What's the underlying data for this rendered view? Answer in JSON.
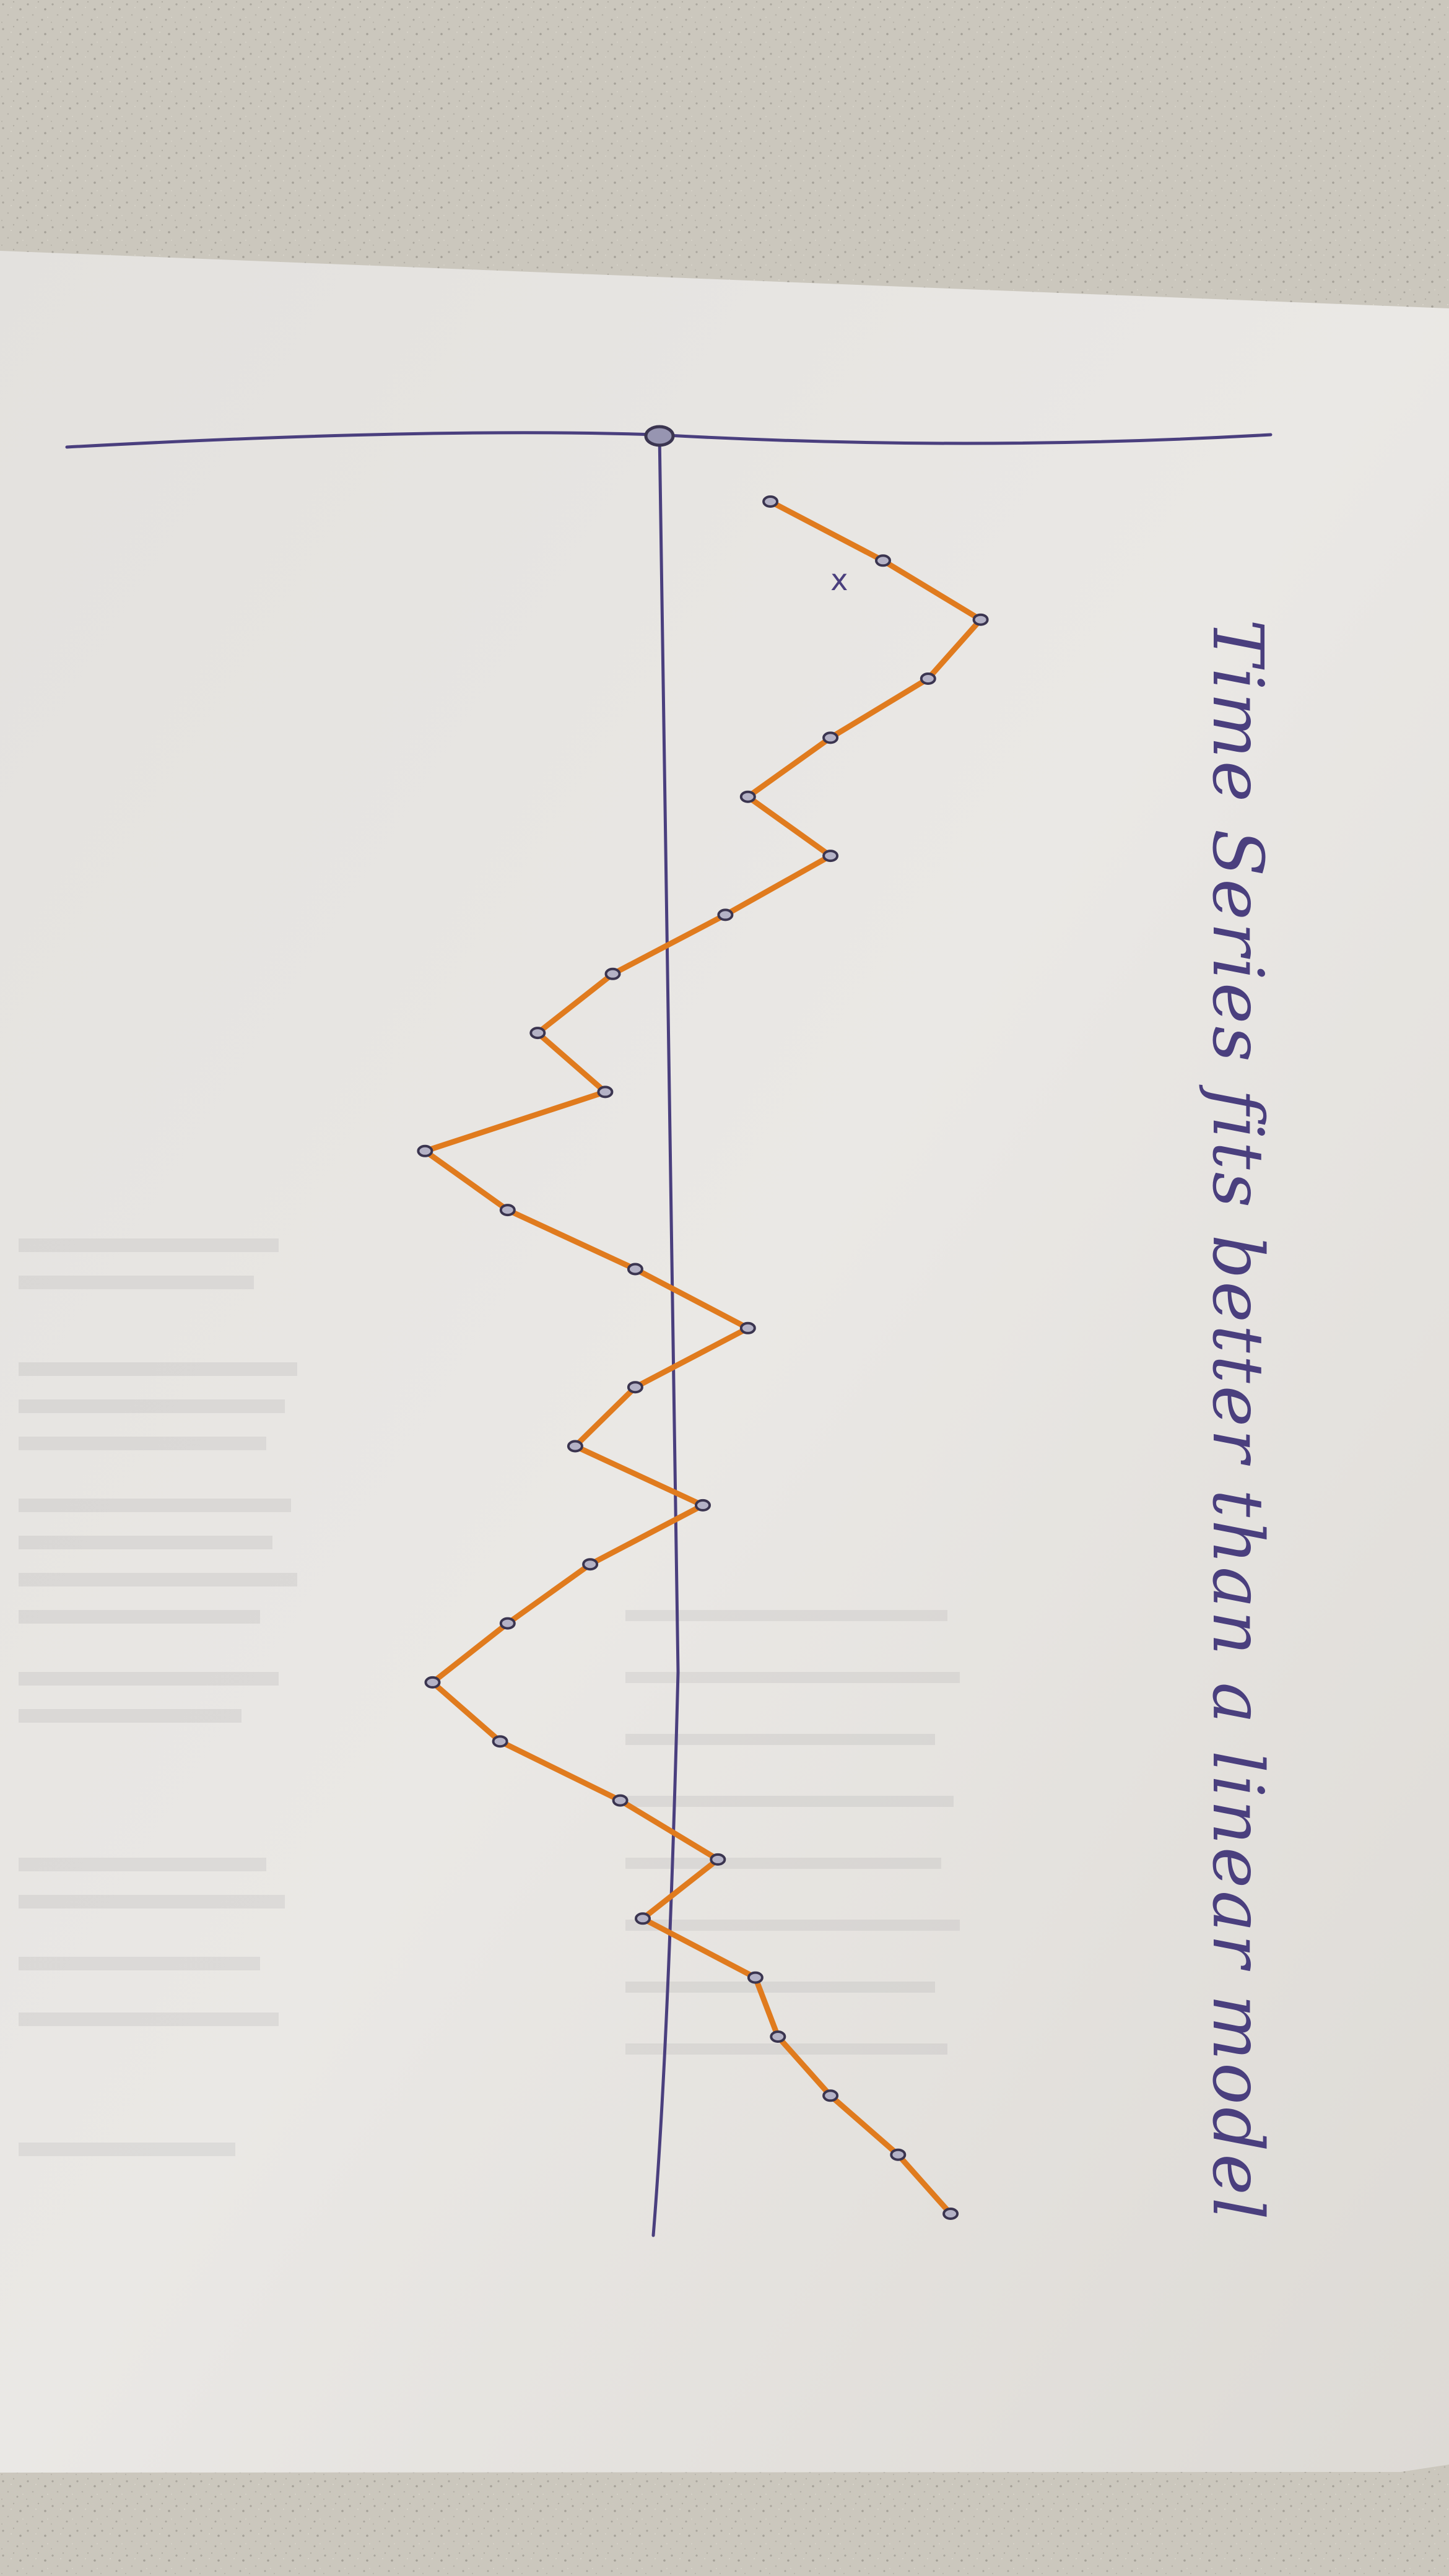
{
  "photo": {
    "subject": "sheet of paper on a speckled desk with a hand-drawn line plot",
    "caption": "Time Series fits better than a linear model"
  },
  "colors": {
    "desk": "#c9c5bb",
    "paper": "#e8e6e2",
    "ink": "#4a3f7e",
    "series": "#e07b1e",
    "point_outline": "#3b3550",
    "point_fill": "#b4b2c6"
  },
  "chart_data": {
    "type": "line",
    "title": "",
    "xlabel": "",
    "ylabel": "",
    "ylim": [
      -1.8,
      2.2
    ],
    "grid": false,
    "legend": "none",
    "series": [
      {
        "name": "",
        "x": [
          0,
          1,
          2,
          3,
          4,
          5,
          6,
          7,
          8,
          9,
          10,
          11,
          12,
          13,
          14,
          15,
          16,
          17,
          18,
          19,
          20,
          21,
          22,
          23,
          24,
          25,
          26,
          27,
          28,
          29
        ],
        "y": [
          0.65,
          1.4,
          2.05,
          1.7,
          1.05,
          0.5,
          1.05,
          0.35,
          -0.4,
          -0.9,
          -0.45,
          -1.65,
          -1.1,
          -0.25,
          0.5,
          -0.25,
          -0.65,
          0.2,
          -0.55,
          -1.1,
          -1.6,
          -1.15,
          -0.35,
          0.3,
          -0.2,
          0.55,
          0.7,
          1.05,
          1.5,
          1.85
        ]
      }
    ],
    "annotations": [
      {
        "text": "x",
        "x": 1.5,
        "y": 1.05
      }
    ]
  }
}
